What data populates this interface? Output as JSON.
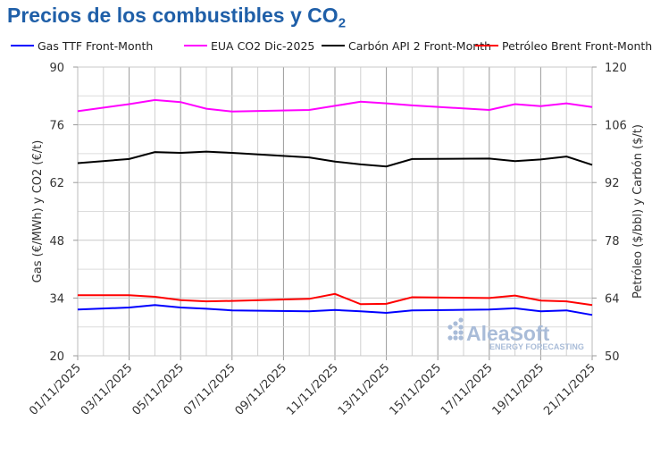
{
  "title": "Precios de los combustibles y CO",
  "title_sub": "2",
  "watermark": {
    "brand": "AleaSoft",
    "tagline": "ENERGY FORECASTING"
  },
  "chart_data": {
    "type": "line",
    "ylabel": "Gas (€/MWh) y CO2 (€/t)",
    "y2label": "Petróleo ($/bbl) y Carbón ($/t)",
    "ylim": [
      20,
      90
    ],
    "yticks": [
      20,
      34,
      48,
      62,
      76,
      90
    ],
    "y2lim": [
      50,
      120
    ],
    "y2ticks": [
      50,
      64,
      78,
      92,
      106,
      120
    ],
    "xlim": [
      "01/11/2025",
      "21/11/2025"
    ],
    "xticks": [
      "01/11/2025",
      "03/11/2025",
      "05/11/2025",
      "07/11/2025",
      "09/11/2025",
      "11/11/2025",
      "13/11/2025",
      "15/11/2025",
      "17/11/2025",
      "19/11/2025",
      "21/11/2025"
    ],
    "grid": true,
    "legend": "top",
    "x": [
      "01/11/2025",
      "03/11/2025",
      "04/11/2025",
      "05/11/2025",
      "06/11/2025",
      "07/11/2025",
      "10/11/2025",
      "11/11/2025",
      "12/11/2025",
      "13/11/2025",
      "14/11/2025",
      "17/11/2025",
      "18/11/2025",
      "19/11/2025",
      "20/11/2025",
      "21/11/2025"
    ],
    "series": [
      {
        "name": "Gas TTF Front-Month",
        "axis": "left",
        "color": "#0000ff",
        "values": [
          31.2,
          31.7,
          32.3,
          31.7,
          31.4,
          31.0,
          30.8,
          31.1,
          30.8,
          30.4,
          31.0,
          31.2,
          31.5,
          30.8,
          31.0,
          29.9
        ]
      },
      {
        "name": "EUA CO2 Dic-2025",
        "axis": "left",
        "color": "#ff00ff",
        "values": [
          79.3,
          81.0,
          82.0,
          81.5,
          79.9,
          79.2,
          79.6,
          80.6,
          81.6,
          81.2,
          80.7,
          79.6,
          81.0,
          80.5,
          81.2,
          80.3
        ]
      },
      {
        "name": "Carbón API 2 Front-Month",
        "axis": "right",
        "color": "#000000",
        "values": [
          96.7,
          97.7,
          99.4,
          99.2,
          99.5,
          99.2,
          98.1,
          97.1,
          96.4,
          95.9,
          97.7,
          97.8,
          97.2,
          97.6,
          98.3,
          96.3
        ]
      },
      {
        "name": "Petróleo Brent Front-Month",
        "axis": "right",
        "color": "#ff0000",
        "values": [
          64.7,
          64.7,
          64.3,
          63.5,
          63.2,
          63.3,
          63.8,
          65.0,
          62.5,
          62.6,
          64.2,
          64.0,
          64.6,
          63.4,
          63.2,
          62.3
        ]
      }
    ]
  }
}
